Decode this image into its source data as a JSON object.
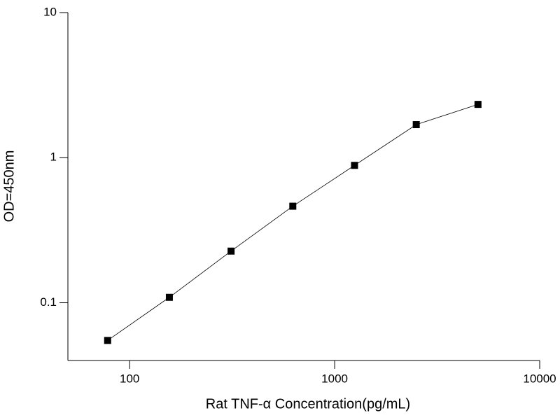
{
  "chart_data": {
    "type": "line",
    "x_label": "Rat TNF-α  Concentration(pg/mL)",
    "y_label": "OD=450nm",
    "x": [
      78.125,
      156.25,
      312.5,
      625,
      1250,
      2500,
      5000
    ],
    "series": [
      {
        "color": "#000000",
        "values": [
          0.055,
          0.109,
          0.227,
          0.463,
          0.885,
          1.69,
          2.33
        ]
      }
    ],
    "xlim": [
      50,
      10000
    ],
    "ylim": [
      0.04,
      10
    ],
    "xticks": [
      100,
      1000,
      10000
    ],
    "yticks": [
      0.1,
      1,
      10
    ],
    "xscale": "log",
    "yscale": "log",
    "grid": false
  }
}
